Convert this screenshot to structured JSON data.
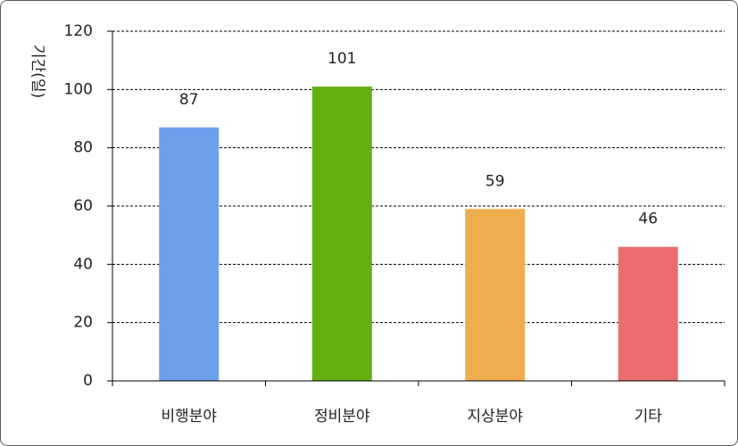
{
  "chart_data": {
    "type": "bar",
    "ylabel": "기간(일)",
    "categories": [
      "비행분야",
      "정비분야",
      "지상분야",
      "기타"
    ],
    "values": [
      87,
      101,
      59,
      46
    ],
    "colors": [
      "#6f9fea",
      "#62b00f",
      "#eeae4f",
      "#ea6e6e"
    ],
    "ylim": [
      0,
      120
    ],
    "yticks": [
      0,
      20,
      40,
      60,
      80,
      100,
      120
    ],
    "grid": true,
    "gridColor": "#000000"
  }
}
